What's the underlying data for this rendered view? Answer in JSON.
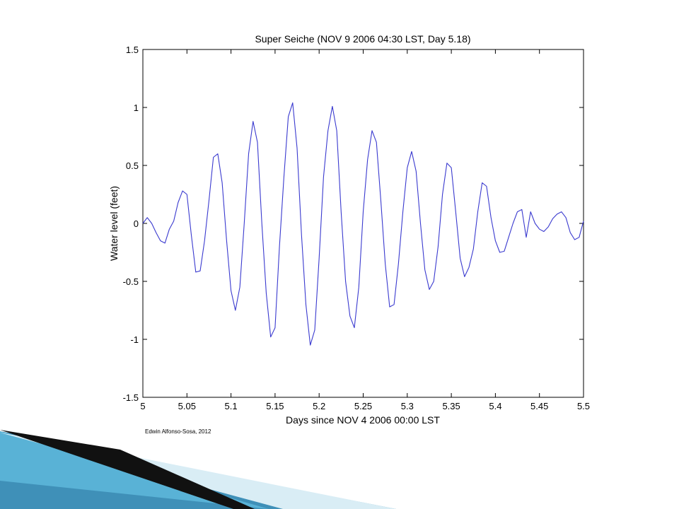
{
  "chart_data": {
    "type": "line",
    "title": "Super Seiche (NOV 9 2006 04:30 LST, Day 5.18)",
    "xlabel": "Days since NOV 4 2006 00:00 LST",
    "ylabel": "Water level (feet)",
    "xlim": [
      5,
      5.5
    ],
    "ylim": [
      -1.5,
      1.5
    ],
    "xticks": [
      5,
      5.05,
      5.1,
      5.15,
      5.2,
      5.25,
      5.3,
      5.35,
      5.4,
      5.45,
      5.5
    ],
    "xtick_labels": [
      "5",
      "5.05",
      "5.1",
      "5.15",
      "5.2",
      "5.25",
      "5.3",
      "5.35",
      "5.4",
      "5.45",
      "5.5"
    ],
    "yticks": [
      1.5,
      1,
      0.5,
      0,
      -0.5,
      -1,
      -1.5
    ],
    "ytick_labels": [
      "1.5",
      "1",
      "0.5",
      "0",
      "-0.5",
      "-1",
      "-1.5"
    ],
    "grid": false,
    "series_color": "#3a3acf",
    "series": [
      {
        "x": [
          5.0,
          5.005,
          5.01,
          5.015,
          5.02,
          5.025,
          5.03,
          5.035,
          5.04,
          5.045,
          5.05,
          5.055,
          5.06,
          5.065,
          5.07,
          5.075,
          5.08,
          5.085,
          5.09,
          5.095,
          5.1,
          5.105,
          5.11,
          5.115,
          5.12,
          5.125,
          5.13,
          5.135,
          5.14,
          5.145,
          5.15,
          5.155,
          5.16,
          5.165,
          5.17,
          5.175,
          5.18,
          5.185,
          5.19,
          5.195,
          5.2,
          5.205,
          5.21,
          5.215,
          5.22,
          5.225,
          5.23,
          5.235,
          5.24,
          5.245,
          5.25,
          5.255,
          5.26,
          5.265,
          5.27,
          5.275,
          5.28,
          5.285,
          5.29,
          5.295,
          5.3,
          5.305,
          5.31,
          5.315,
          5.32,
          5.325,
          5.33,
          5.335,
          5.34,
          5.345,
          5.35,
          5.355,
          5.36,
          5.365,
          5.37,
          5.375,
          5.38,
          5.385,
          5.39,
          5.395,
          5.4,
          5.405,
          5.41,
          5.415,
          5.42,
          5.425,
          5.43,
          5.435,
          5.44,
          5.445,
          5.45,
          5.455,
          5.46,
          5.465,
          5.47,
          5.475,
          5.48,
          5.485,
          5.49,
          5.495,
          5.5
        ],
        "values": [
          0.0,
          0.05,
          0.0,
          -0.08,
          -0.15,
          -0.17,
          -0.05,
          0.02,
          0.18,
          0.28,
          0.25,
          -0.1,
          -0.42,
          -0.41,
          -0.15,
          0.2,
          0.57,
          0.6,
          0.35,
          -0.15,
          -0.58,
          -0.75,
          -0.55,
          0.0,
          0.6,
          0.88,
          0.7,
          0.0,
          -0.6,
          -0.98,
          -0.9,
          -0.2,
          0.4,
          0.92,
          1.04,
          0.65,
          -0.1,
          -0.7,
          -1.05,
          -0.92,
          -0.3,
          0.4,
          0.8,
          1.01,
          0.8,
          0.1,
          -0.5,
          -0.8,
          -0.9,
          -0.55,
          0.1,
          0.55,
          0.8,
          0.7,
          0.2,
          -0.35,
          -0.72,
          -0.7,
          -0.35,
          0.1,
          0.48,
          0.62,
          0.45,
          0.0,
          -0.4,
          -0.57,
          -0.5,
          -0.2,
          0.25,
          0.52,
          0.48,
          0.1,
          -0.3,
          -0.46,
          -0.38,
          -0.22,
          0.1,
          0.35,
          0.32,
          0.05,
          -0.15,
          -0.25,
          -0.24,
          -0.12,
          0.0,
          0.1,
          0.12,
          -0.12,
          0.1,
          0.0,
          -0.05,
          -0.07,
          -0.03,
          0.04,
          0.08,
          0.1,
          0.05,
          -0.08,
          -0.14,
          -0.12,
          0.02
        ]
      }
    ]
  },
  "credit": "Edwin Alfonso-Sosa, 2012"
}
